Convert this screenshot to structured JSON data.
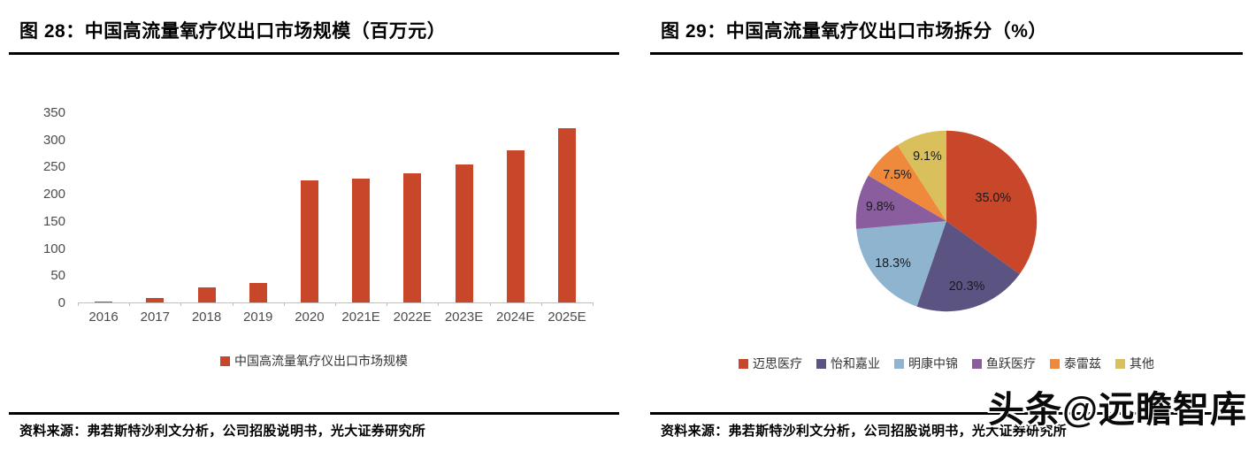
{
  "figure_left": {
    "title": "图 28：中国高流量氧疗仪出口市场规模（百万元）",
    "source": "资料来源：弗若斯特沙利文分析，公司招股说明书，光大证券研究所",
    "legend_label": "中国高流量氧疗仪出口市场规模"
  },
  "figure_right": {
    "title": "图 29：中国高流量氧疗仪出口市场拆分（%）",
    "source": "资料来源：弗若斯特沙利文分析，公司招股说明书，光大证券研究所"
  },
  "watermark": "头条@远瞻智库",
  "chart_data": [
    {
      "type": "bar",
      "title": "中国高流量氧疗仪出口市场规模（百万元）",
      "categories": [
        "2016",
        "2017",
        "2018",
        "2019",
        "2020",
        "2021E",
        "2022E",
        "2023E",
        "2024E",
        "2025E"
      ],
      "values": [
        1,
        8,
        27,
        36,
        224,
        228,
        238,
        254,
        280,
        320
      ],
      "series_name": "中国高流量氧疗仪出口市场规模",
      "xlabel": "",
      "ylabel": "",
      "ylim": [
        0,
        350
      ],
      "yticks": [
        0,
        50,
        100,
        150,
        200,
        250,
        300,
        350
      ],
      "grid": false,
      "legend_position": "bottom",
      "bar_color": "#C8472B",
      "axis_color": "#BFBFBF",
      "tick_label_color": "#4C4C4C"
    },
    {
      "type": "pie",
      "title": "中国高流量氧疗仪出口市场拆分（%）",
      "labels": [
        "迈思医疗",
        "怡和嘉业",
        "明康中锦",
        "鱼跃医疗",
        "泰雷兹",
        "其他"
      ],
      "values": [
        35.0,
        20.3,
        18.3,
        9.8,
        7.5,
        9.1
      ],
      "data_labels": [
        "35.0%",
        "20.3%",
        "18.3%",
        "9.8%",
        "7.5%",
        "9.1%"
      ],
      "colors": [
        "#C8472B",
        "#5B5382",
        "#8FB4CF",
        "#8A5E9E",
        "#EF8A3C",
        "#D9C05C"
      ],
      "start_angle": "12-oclock",
      "direction": "clockwise",
      "legend_position": "bottom"
    }
  ]
}
